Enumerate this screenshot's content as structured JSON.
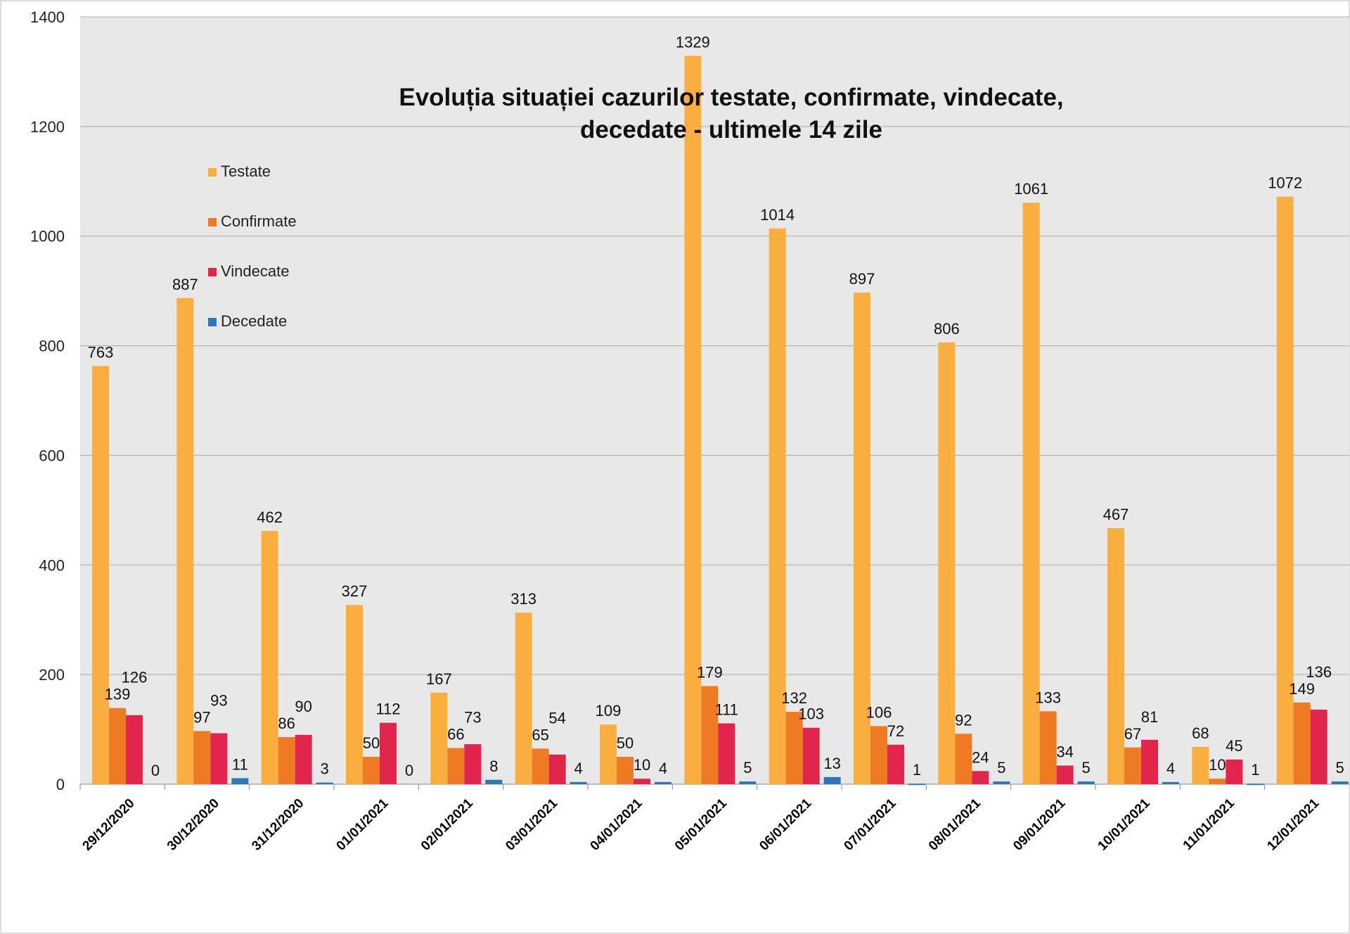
{
  "chart_data": {
    "type": "bar",
    "title": [
      "Evoluția situației cazurilor testate, confirmate, vindecate,",
      "decedate -  ultimele 14 zile"
    ],
    "xlabel": "",
    "ylabel": "",
    "ylim": [
      0,
      1400
    ],
    "yticks": [
      "0",
      "200",
      "400",
      "600",
      "800",
      "1000",
      "1200",
      "1400"
    ],
    "grid": true,
    "legend_position": "top-left",
    "categories": [
      "29/12/2020",
      "30/12/2020",
      "31/12/2020",
      "01/01/2021",
      "02/01/2021",
      "03/01/2021",
      "04/01/2021",
      "05/01/2021",
      "06/01/2021",
      "07/01/2021",
      "08/01/2021",
      "09/01/2021",
      "10/01/2021",
      "11/01/2021",
      "12/01/2021"
    ],
    "series": [
      {
        "name": "Testate",
        "color": "#F9AE3F",
        "values": [
          763,
          887,
          462,
          327,
          167,
          313,
          109,
          1329,
          1014,
          897,
          806,
          1061,
          467,
          68,
          1072
        ]
      },
      {
        "name": "Confirmate",
        "color": "#EE7A24",
        "values": [
          139,
          97,
          86,
          50,
          66,
          65,
          50,
          179,
          132,
          106,
          92,
          133,
          67,
          10,
          149
        ]
      },
      {
        "name": "Vindecate",
        "color": "#E2254C",
        "values": [
          126,
          93,
          90,
          112,
          73,
          54,
          10,
          111,
          103,
          72,
          24,
          34,
          81,
          45,
          136
        ]
      },
      {
        "name": "Decedate",
        "color": "#2F78B8",
        "values": [
          0,
          11,
          3,
          0,
          8,
          4,
          4,
          5,
          13,
          1,
          5,
          5,
          4,
          1,
          5
        ]
      }
    ]
  }
}
